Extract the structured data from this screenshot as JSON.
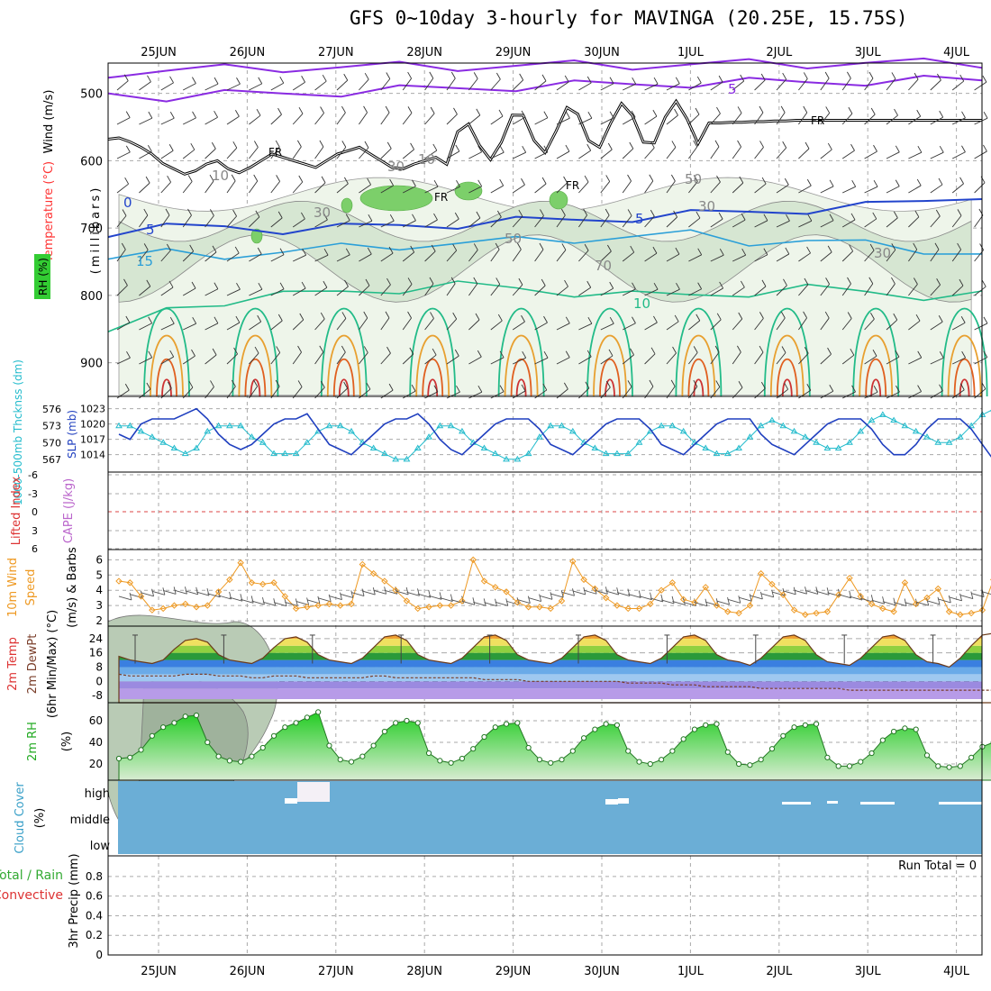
{
  "title": "GFS 0~10day 3-hourly for MAVINGA (20.25E, 15.75S)",
  "colors": {
    "frame": "#000000",
    "grid": "#aaaaaa",
    "purple": "#8a2be2",
    "rh_green": "#33cc33",
    "temp_red": "#ff3333",
    "temp_label": "#ff3333",
    "slp_blue": "#1f3fbf",
    "thick_cyan": "#22bbcc",
    "wind_orange": "#ee9922",
    "cloud_blue": "#6baed6",
    "rain_green": "#33aa33"
  },
  "chart_data": {
    "type": "meteogram",
    "dates": [
      "25JUN",
      "26JUN",
      "27JUN",
      "28JUN",
      "29JUN",
      "30JUN",
      "1JUL",
      "2JUL",
      "3JUL",
      "4JUL"
    ],
    "upper_air": {
      "left_labels": [
        {
          "text": "Wind (m/s)",
          "color": "#000000"
        },
        {
          "text": "Temperature (°C)",
          "color": "#ff3333"
        },
        {
          "text": "RH (%)",
          "color": "#000000"
        },
        {
          "text": "(millibars)",
          "color": "#000000"
        }
      ],
      "rh_legend": "RH (%)",
      "yticks": [
        500,
        600,
        700,
        800,
        900
      ],
      "contour_labels": [
        "5",
        "FR",
        "FR",
        "FR",
        "FR",
        "0",
        "5",
        "5",
        "10",
        "15",
        "10",
        "30",
        "30",
        "30",
        "50",
        "30",
        "10",
        "70",
        "50"
      ],
      "frz_level_mb": [
        568,
        566,
        572,
        580,
        590,
        604,
        612,
        620,
        615,
        605,
        600,
        612,
        618,
        610,
        600,
        590,
        595,
        600,
        605,
        610,
        600,
        590,
        585,
        580,
        590,
        600,
        610,
        612,
        605,
        600,
        595,
        588,
        580,
        575,
        570,
        565,
        562,
        560,
        558,
        556,
        555,
        553,
        552,
        551,
        550,
        549,
        548,
        548,
        547,
        547,
        546,
        546,
        545,
        545,
        545,
        544,
        544,
        543,
        543,
        542,
        542,
        541,
        541,
        540,
        540,
        540,
        540,
        540,
        540,
        540,
        540,
        540,
        540,
        540,
        540,
        540,
        540,
        540,
        540,
        540,
        540
      ]
    },
    "slp_thickness": {
      "left_label_thickness": "1000-500mb Thcknss (dm)",
      "left_label_slp": "SLP (mb)",
      "thickness_ticks": [
        567,
        570,
        573,
        576
      ],
      "slp_ticks": [
        1014,
        1017,
        1020,
        1023
      ],
      "slp": [
        1018,
        1017,
        1020,
        1021,
        1021,
        1021,
        1022,
        1023,
        1021,
        1018,
        1016,
        1015,
        1016,
        1018,
        1020,
        1021,
        1021,
        1022,
        1019,
        1016,
        1015,
        1014,
        1016,
        1018,
        1020,
        1021,
        1021,
        1022,
        1020,
        1017,
        1015,
        1014,
        1016,
        1018,
        1020,
        1021,
        1021,
        1021,
        1019,
        1016,
        1015,
        1014,
        1016,
        1018,
        1020,
        1021,
        1021,
        1021,
        1019,
        1016,
        1015,
        1014,
        1016,
        1018,
        1020,
        1021,
        1021,
        1021,
        1018,
        1016,
        1015,
        1014,
        1016,
        1018,
        1020,
        1021,
        1021,
        1021,
        1019,
        1016,
        1014,
        1014,
        1016,
        1019,
        1021,
        1021,
        1021,
        1019,
        1016,
        1013,
        1013,
        1015,
        1017,
        1019,
        1020
      ],
      "thickness": [
        573,
        573,
        572,
        571,
        570,
        569,
        568,
        569,
        572,
        573,
        573,
        573,
        571,
        570,
        568,
        568,
        568,
        570,
        572,
        573,
        573,
        572,
        570,
        569,
        568,
        567,
        567,
        569,
        571,
        573,
        573,
        572,
        570,
        569,
        568,
        567,
        567,
        568,
        571,
        573,
        573,
        572,
        570,
        569,
        568,
        568,
        568,
        570,
        572,
        573,
        573,
        572,
        570,
        569,
        568,
        568,
        569,
        571,
        573,
        574,
        573,
        572,
        571,
        570,
        569,
        569,
        570,
        572,
        574,
        575,
        574,
        573,
        572,
        571,
        570,
        570,
        571,
        573,
        575,
        576,
        575,
        573,
        572,
        572,
        573
      ]
    },
    "cape_li": {
      "left_label_li": "Lifted Index",
      "left_label_cape": "CAPE (J/kg)",
      "li_ticks": [
        "-6",
        "-3",
        "0",
        "3",
        "6"
      ],
      "cape": 0,
      "lifted_index": "none"
    },
    "wind10m": {
      "left_labels": [
        "10m Wind",
        "Speed",
        "(m/s) & Barbs"
      ],
      "yticks": [
        2,
        3,
        4,
        5,
        6
      ],
      "speed": [
        4.6,
        4.5,
        3.6,
        2.7,
        2.8,
        3.0,
        3.1,
        2.9,
        3.0,
        3.9,
        4.7,
        5.8,
        4.5,
        4.4,
        4.5,
        3.6,
        2.8,
        2.9,
        3.0,
        3.1,
        3.0,
        3.1,
        5.7,
        5.1,
        4.6,
        4.0,
        3.3,
        2.8,
        2.9,
        3.0,
        3.0,
        3.3,
        6.0,
        4.6,
        4.2,
        3.9,
        3.2,
        2.9,
        2.9,
        2.8,
        3.3,
        5.9,
        4.7,
        4.1,
        3.5,
        3.0,
        2.8,
        2.8,
        3.1,
        4.0,
        4.5,
        3.4,
        3.2,
        4.2,
        3.0,
        2.6,
        2.5,
        3.0,
        5.1,
        4.4,
        3.7,
        2.7,
        2.4,
        2.5,
        2.6,
        3.7,
        4.8,
        3.6,
        3.1,
        2.8,
        2.6,
        4.5,
        3.1,
        3.5,
        4.1,
        2.6,
        2.4,
        2.5,
        2.7,
        4.7,
        3.2,
        1.9,
        2.0,
        2.4,
        3.0
      ]
    },
    "temp2m": {
      "left_labels": [
        "2m Temp",
        "2m DewPt",
        "(6hr Min/Max) (°C)"
      ],
      "yticks": [
        "-8",
        "0",
        "8",
        "16",
        "24"
      ],
      "temp": [
        14,
        12,
        11,
        10,
        12,
        18,
        23,
        24,
        22,
        15,
        12,
        11,
        10,
        13,
        19,
        24,
        25,
        22,
        15,
        12,
        11,
        10,
        13,
        19,
        25,
        26,
        23,
        15,
        12,
        11,
        10,
        13,
        19,
        25,
        26,
        23,
        15,
        12,
        11,
        10,
        13,
        19,
        25,
        26,
        23,
        15,
        12,
        11,
        10,
        13,
        19,
        25,
        26,
        23,
        15,
        12,
        11,
        9,
        13,
        19,
        25,
        26,
        23,
        15,
        11,
        10,
        9,
        13,
        19,
        25,
        26,
        23,
        15,
        11,
        10,
        8,
        13,
        20,
        26,
        27,
        24,
        15,
        11,
        10,
        10
      ],
      "dewpt": [
        4,
        3,
        3,
        3,
        3,
        3,
        4,
        4,
        4,
        3,
        3,
        3,
        2,
        2,
        3,
        3,
        3,
        2,
        2,
        2,
        2,
        2,
        2,
        3,
        3,
        2,
        2,
        2,
        2,
        2,
        2,
        2,
        2,
        1,
        1,
        1,
        1,
        0,
        0,
        0,
        0,
        0,
        0,
        0,
        0,
        0,
        -1,
        -1,
        -1,
        -1,
        -2,
        -2,
        -2,
        -3,
        -3,
        -3,
        -3,
        -3,
        -4,
        -4,
        -4,
        -4,
        -4,
        -4,
        -4,
        -4,
        -5,
        -5,
        -5,
        -5,
        -5,
        -5,
        -5,
        -5,
        -5,
        -5,
        -5,
        -5,
        -5,
        -5,
        -5,
        -5,
        -5,
        -5,
        -5
      ]
    },
    "rh2m": {
      "left_label": "2m RH",
      "unit": "(%)",
      "yticks": [
        20,
        40,
        60
      ],
      "rh": [
        25,
        26,
        33,
        46,
        54,
        58,
        64,
        65,
        40,
        27,
        23,
        22,
        27,
        35,
        46,
        54,
        58,
        63,
        68,
        37,
        24,
        22,
        27,
        37,
        50,
        58,
        60,
        58,
        30,
        23,
        21,
        25,
        34,
        45,
        54,
        57,
        58,
        35,
        24,
        21,
        24,
        32,
        44,
        52,
        57,
        56,
        32,
        22,
        20,
        24,
        32,
        43,
        52,
        56,
        57,
        31,
        20,
        19,
        24,
        34,
        46,
        54,
        56,
        57,
        26,
        18,
        18,
        22,
        30,
        42,
        50,
        53,
        52,
        28,
        18,
        17,
        18,
        26,
        36,
        40,
        42,
        43,
        28,
        17,
        16
      ]
    },
    "cloud": {
      "left_labels": [
        "Cloud Cover",
        "(%)"
      ],
      "levels": [
        "high",
        "middle",
        "low"
      ]
    },
    "precip": {
      "left_labels": [
        "Total / Rain",
        "Convective"
      ],
      "axis_label": "3hr Precip (mm)",
      "yticks": [
        "0",
        "0.2",
        "0.4",
        "0.6",
        "0.8"
      ],
      "run_total": "Run Total = 0",
      "values": "all 0"
    }
  }
}
